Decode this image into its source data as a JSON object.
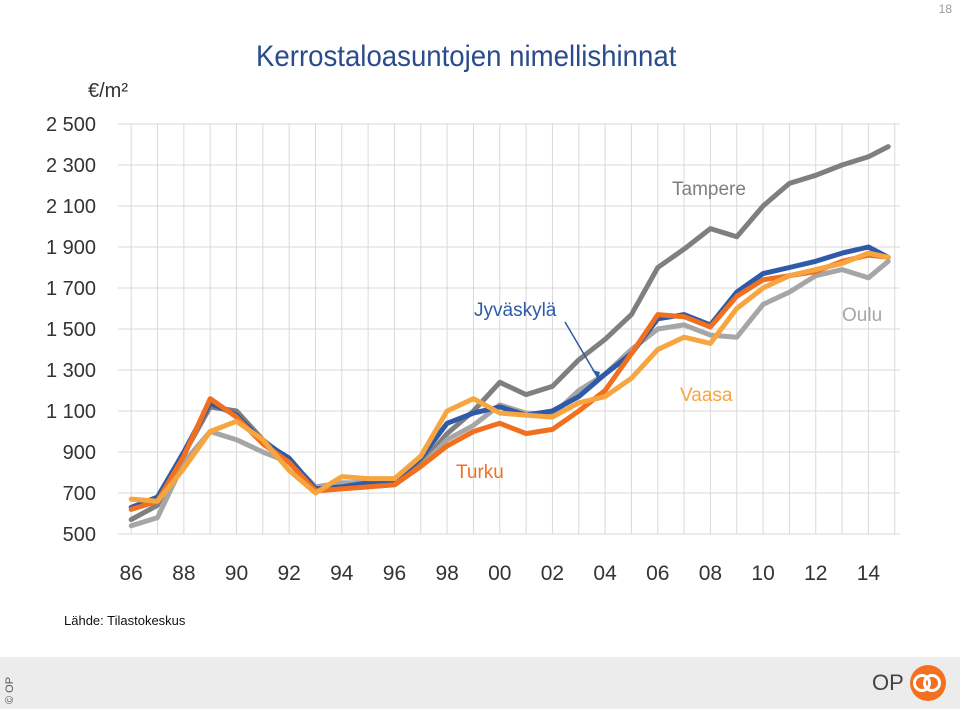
{
  "page_number": "18",
  "unit_label": "€/m²",
  "source": "Lähde: Tilastokeskus",
  "copyright": "© OP",
  "brand": "OP",
  "colors": {
    "tampere": "#7f7f7f",
    "oulu": "#a6a6a6",
    "jyvaskyla": "#2e5aa8",
    "turku": "#f07020",
    "vaasa": "#f7a540",
    "grid": "#d9d9d9"
  },
  "chart_data": {
    "type": "line",
    "title": "Kerrostaloasuntojen nimellishinnat",
    "xlabel": "",
    "ylabel": "€/m²",
    "xlim": [
      1985.5,
      2015.2
    ],
    "ylim": [
      500,
      2500
    ],
    "x_tick_labels": [
      "86",
      "88",
      "90",
      "92",
      "94",
      "96",
      "98",
      "00",
      "02",
      "04",
      "06",
      "08",
      "10",
      "12",
      "14"
    ],
    "y_tick_labels": [
      "2 500",
      "2 300",
      "2 100",
      "1 900",
      "1 700",
      "1 500",
      "1 300",
      "1 100",
      "900",
      "700",
      "500"
    ],
    "grid": true,
    "series": [
      {
        "name": "Tampere",
        "color_key": "tampere",
        "x": [
          1986,
          1987,
          1988,
          1989,
          1990,
          1991,
          1992,
          1993,
          1994,
          1995,
          1996,
          1997,
          1998,
          1999,
          2000,
          2001,
          2002,
          2003,
          2004,
          2005,
          2006,
          2007,
          2008,
          2009,
          2010,
          2011,
          2012,
          2013,
          2014,
          2014.75
        ],
        "y": [
          570,
          640,
          890,
          1120,
          1100,
          960,
          860,
          730,
          740,
          760,
          760,
          840,
          990,
          1100,
          1240,
          1180,
          1220,
          1350,
          1450,
          1570,
          1800,
          1890,
          1990,
          1950,
          2100,
          2210,
          2250,
          2300,
          2340,
          2390
        ]
      },
      {
        "name": "Oulu",
        "color_key": "oulu",
        "x": [
          1986,
          1987,
          1988,
          1989,
          1990,
          1991,
          1992,
          1993,
          1994,
          1995,
          1996,
          1997,
          1998,
          1999,
          2000,
          2001,
          2002,
          2003,
          2004,
          2005,
          2006,
          2007,
          2008,
          2009,
          2010,
          2011,
          2012,
          2013,
          2014,
          2014.75
        ],
        "y": [
          540,
          580,
          850,
          1000,
          960,
          900,
          850,
          730,
          750,
          750,
          740,
          830,
          960,
          1030,
          1130,
          1090,
          1080,
          1200,
          1280,
          1400,
          1500,
          1520,
          1470,
          1460,
          1620,
          1680,
          1760,
          1790,
          1750,
          1830
        ]
      },
      {
        "name": "Jyväskylä",
        "color_key": "jyvaskyla",
        "x": [
          1986,
          1987,
          1988,
          1989,
          1990,
          1991,
          1992,
          1993,
          1994,
          1995,
          1996,
          1997,
          1998,
          1999,
          2000,
          2001,
          2002,
          2003,
          2004,
          2005,
          2006,
          2007,
          2008,
          2009,
          2010,
          2011,
          2012,
          2013,
          2014,
          2014.75
        ],
        "y": [
          630,
          680,
          900,
          1140,
          1080,
          950,
          870,
          720,
          730,
          750,
          760,
          870,
          1040,
          1090,
          1120,
          1080,
          1100,
          1170,
          1280,
          1380,
          1550,
          1570,
          1520,
          1680,
          1770,
          1800,
          1830,
          1870,
          1900,
          1850
        ]
      },
      {
        "name": "Turku",
        "color_key": "turku",
        "x": [
          1986,
          1987,
          1988,
          1989,
          1990,
          1991,
          1992,
          1993,
          1994,
          1995,
          1996,
          1997,
          1998,
          1999,
          2000,
          2001,
          2002,
          2003,
          2004,
          2005,
          2006,
          2007,
          2008,
          2009,
          2010,
          2011,
          2012,
          2013,
          2014,
          2014.75
        ],
        "y": [
          620,
          660,
          880,
          1160,
          1070,
          940,
          850,
          710,
          720,
          730,
          740,
          830,
          930,
          1000,
          1040,
          990,
          1010,
          1100,
          1200,
          1380,
          1570,
          1560,
          1510,
          1660,
          1740,
          1760,
          1780,
          1830,
          1860,
          1850
        ]
      },
      {
        "name": "Vaasa",
        "color_key": "vaasa",
        "x": [
          1986,
          1987,
          1988,
          1989,
          1990,
          1991,
          1992,
          1993,
          1994,
          1995,
          1996,
          1997,
          1998,
          1999,
          2000,
          2001,
          2002,
          2003,
          2004,
          2005,
          2006,
          2007,
          2008,
          2009,
          2010,
          2011,
          2012,
          2013,
          2014,
          2014.75
        ],
        "y": [
          670,
          660,
          820,
          1000,
          1050,
          960,
          810,
          700,
          780,
          770,
          770,
          880,
          1100,
          1160,
          1090,
          1080,
          1070,
          1140,
          1170,
          1260,
          1400,
          1460,
          1430,
          1600,
          1700,
          1760,
          1790,
          1820,
          1870,
          1850
        ]
      }
    ],
    "annotations": [
      {
        "text": "Tampere",
        "series": "Tampere"
      },
      {
        "text": "Jyväskylä",
        "series": "Jyväskylä"
      },
      {
        "text": "Oulu",
        "series": "Oulu"
      },
      {
        "text": "Vaasa",
        "series": "Vaasa"
      },
      {
        "text": "Turku",
        "series": "Turku"
      }
    ]
  }
}
